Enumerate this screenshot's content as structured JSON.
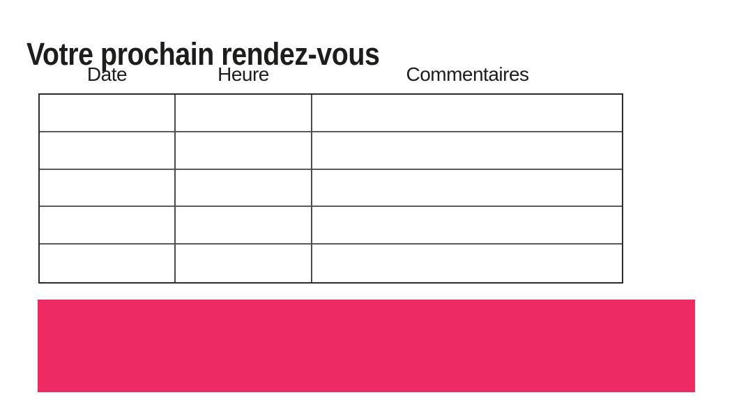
{
  "page": {
    "title": "Votre prochain rendez-vous"
  },
  "table": {
    "headers": [
      {
        "label": "Date"
      },
      {
        "label": "Heure"
      },
      {
        "label": "Commentaires"
      }
    ],
    "rows": [
      [
        "",
        "",
        ""
      ],
      [
        "",
        "",
        ""
      ],
      [
        "",
        "",
        ""
      ],
      [
        "",
        "",
        ""
      ],
      [
        "",
        "",
        ""
      ]
    ]
  },
  "banner": {
    "color": "#ee2a63"
  }
}
